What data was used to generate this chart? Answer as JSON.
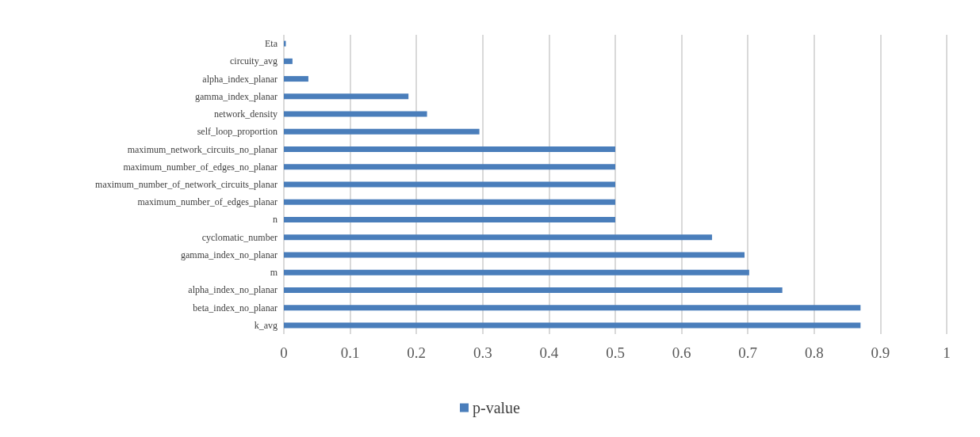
{
  "chart_data": {
    "type": "bar",
    "orientation": "horizontal",
    "categories": [
      "Eta",
      "circuity_avg",
      "alpha_index_planar",
      "gamma_index_planar",
      "network_density",
      "self_loop_proportion",
      "maximum_network_circuits_no_planar",
      "maximum_number_of_edges_no_planar",
      "maximum_number_of_network_circuits_planar",
      "maximum_number_of_edges_planar",
      "n",
      "cyclomatic_number",
      "gamma_index_no_planar",
      "m",
      "alpha_index_no_planar",
      "beta_index_no_planar",
      "k_avg"
    ],
    "series": [
      {
        "name": "p-value",
        "color": "#4a7ebb",
        "values": [
          0.003,
          0.013,
          0.037,
          0.188,
          0.216,
          0.295,
          0.5,
          0.5,
          0.5,
          0.5,
          0.5,
          0.646,
          0.695,
          0.702,
          0.752,
          0.87,
          0.87
        ]
      }
    ],
    "xlim": [
      0,
      1
    ],
    "xticks": [
      0,
      0.1,
      0.2,
      0.3,
      0.4,
      0.5,
      0.6,
      0.7,
      0.8,
      0.9,
      1
    ],
    "grid": "x",
    "legend": "bottom"
  }
}
